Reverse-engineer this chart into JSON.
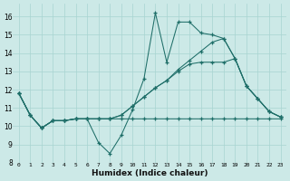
{
  "xlabel": "Humidex (Indice chaleur)",
  "xlim": [
    -0.5,
    23.5
  ],
  "ylim": [
    8,
    16.7
  ],
  "xticks": [
    0,
    1,
    2,
    3,
    4,
    5,
    6,
    7,
    8,
    9,
    10,
    11,
    12,
    13,
    14,
    15,
    16,
    17,
    18,
    19,
    20,
    21,
    22,
    23
  ],
  "yticks": [
    8,
    9,
    10,
    11,
    12,
    13,
    14,
    15,
    16
  ],
  "bg_color": "#cce9e7",
  "line_color": "#1e6e68",
  "grid_color": "#a8d4d1",
  "lines": [
    {
      "x": [
        0,
        1,
        2,
        3,
        4,
        5,
        6,
        7,
        8,
        9,
        10,
        11,
        12,
        13,
        14,
        15,
        16,
        17,
        18,
        19,
        20,
        21,
        22,
        23
      ],
      "y": [
        11.8,
        10.6,
        9.9,
        10.3,
        10.3,
        10.4,
        10.4,
        9.1,
        8.5,
        9.5,
        10.9,
        12.6,
        16.2,
        13.5,
        15.7,
        15.7,
        15.1,
        15.0,
        14.8,
        13.7,
        12.2,
        11.5,
        10.8,
        10.5
      ]
    },
    {
      "x": [
        0,
        1,
        2,
        3,
        4,
        5,
        6,
        7,
        8,
        9,
        10,
        11,
        12,
        13,
        14,
        15,
        16,
        17,
        18,
        19,
        20,
        21,
        22,
        23
      ],
      "y": [
        11.8,
        10.6,
        9.9,
        10.3,
        10.3,
        10.4,
        10.4,
        10.4,
        10.4,
        10.4,
        10.4,
        10.4,
        10.4,
        10.4,
        10.4,
        10.4,
        10.4,
        10.4,
        10.4,
        10.4,
        10.4,
        10.4,
        10.4,
        10.4
      ]
    },
    {
      "x": [
        0,
        1,
        2,
        3,
        4,
        5,
        6,
        7,
        8,
        9,
        10,
        11,
        12,
        13,
        14,
        15,
        16,
        17,
        18,
        19,
        20,
        21,
        22,
        23
      ],
      "y": [
        11.8,
        10.6,
        9.9,
        10.3,
        10.3,
        10.4,
        10.4,
        10.4,
        10.4,
        10.6,
        11.1,
        11.6,
        12.1,
        12.5,
        13.0,
        13.4,
        13.5,
        13.5,
        13.5,
        13.7,
        12.2,
        11.5,
        10.8,
        10.5
      ]
    },
    {
      "x": [
        0,
        1,
        2,
        3,
        4,
        5,
        6,
        7,
        8,
        9,
        10,
        11,
        12,
        13,
        14,
        15,
        16,
        17,
        18,
        19,
        20,
        21,
        22,
        23
      ],
      "y": [
        11.8,
        10.6,
        9.9,
        10.3,
        10.3,
        10.4,
        10.4,
        10.4,
        10.4,
        10.6,
        11.1,
        11.6,
        12.1,
        12.5,
        13.1,
        13.6,
        14.1,
        14.6,
        14.8,
        13.7,
        12.2,
        11.5,
        10.8,
        10.5
      ]
    }
  ]
}
